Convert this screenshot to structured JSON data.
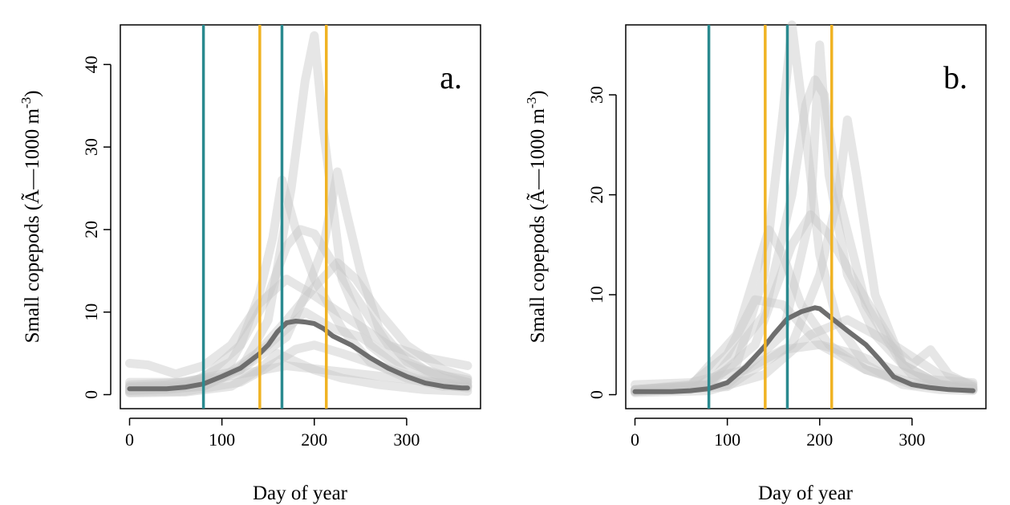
{
  "chart_data": [
    {
      "type": "line",
      "panel_label": "a.",
      "xlabel": "Day of year",
      "ylabel": "Small copepods (Ã—1000 m-3)",
      "ylabel_main": "Small copepods (Ã—1000 m",
      "ylabel_sup": "-3",
      "ylabel_close": ")",
      "xlim": [
        -10,
        380
      ],
      "ylim": [
        -1.7,
        44.8
      ],
      "x_ticks": [
        0,
        100,
        200,
        300
      ],
      "y_ticks": [
        0,
        10,
        20,
        30,
        40
      ],
      "grid": false,
      "legend": "none",
      "colors": {
        "mean": "#6e6e6e",
        "years": "#c8c8c8",
        "teal": "#2a8a8f",
        "gold": "#f0b323"
      },
      "vlines": [
        {
          "x": 80,
          "color": "#2a8a8f"
        },
        {
          "x": 141,
          "color": "#f0b323"
        },
        {
          "x": 165,
          "color": "#2a8a8f"
        },
        {
          "x": 213,
          "color": "#f0b323"
        }
      ],
      "series": [
        {
          "role": "mean",
          "x": [
            0,
            20,
            40,
            60,
            80,
            100,
            120,
            140,
            150,
            160,
            170,
            180,
            190,
            200,
            210,
            220,
            240,
            260,
            280,
            300,
            320,
            340,
            360,
            366
          ],
          "values": [
            0.7,
            0.7,
            0.7,
            0.9,
            1.3,
            2.2,
            3.2,
            4.9,
            6.0,
            7.6,
            8.7,
            8.9,
            8.8,
            8.6,
            8.0,
            7.1,
            6.0,
            4.5,
            3.2,
            2.2,
            1.4,
            1.0,
            0.8,
            0.8
          ]
        },
        {
          "role": "year",
          "x": [
            0,
            40,
            80,
            120,
            150,
            175,
            190,
            200,
            210,
            230,
            260,
            300,
            340,
            366
          ],
          "values": [
            0.5,
            0.6,
            1.0,
            3.0,
            9.0,
            25.0,
            38.0,
            43.5,
            32.0,
            14.0,
            6.0,
            2.5,
            1.2,
            1.0
          ]
        },
        {
          "role": "year",
          "x": [
            0,
            40,
            80,
            120,
            140,
            155,
            165,
            180,
            200,
            230,
            260,
            300,
            340,
            366
          ],
          "values": [
            1.0,
            1.2,
            2.0,
            6.0,
            12.0,
            19.0,
            26.0,
            20.0,
            14.0,
            8.0,
            4.0,
            2.0,
            1.0,
            1.0
          ]
        },
        {
          "role": "year",
          "x": [
            0,
            60,
            120,
            170,
            190,
            210,
            225,
            235,
            250,
            270,
            300,
            340,
            366
          ],
          "values": [
            1.5,
            1.5,
            3.0,
            7.0,
            12.0,
            18.0,
            27.0,
            22.0,
            15.0,
            8.0,
            4.0,
            2.0,
            1.5
          ]
        },
        {
          "role": "year",
          "x": [
            0,
            60,
            110,
            150,
            170,
            185,
            200,
            220,
            250,
            280,
            320,
            366
          ],
          "values": [
            0.8,
            1.0,
            4.0,
            12.0,
            18.0,
            20.0,
            19.5,
            16.0,
            11.0,
            6.0,
            3.0,
            1.5
          ]
        },
        {
          "role": "year",
          "x": [
            0,
            80,
            130,
            170,
            200,
            225,
            245,
            270,
            300,
            340,
            366
          ],
          "values": [
            0.5,
            1.0,
            4.0,
            9.0,
            13.0,
            16.0,
            14.0,
            10.0,
            6.0,
            3.0,
            2.0
          ]
        },
        {
          "role": "year",
          "x": [
            0,
            20,
            50,
            80,
            110,
            140,
            170,
            200,
            240,
            280,
            320,
            366
          ],
          "values": [
            3.8,
            3.6,
            2.5,
            3.5,
            6.0,
            11.0,
            14.0,
            12.0,
            9.0,
            6.0,
            4.5,
            3.5
          ]
        },
        {
          "role": "year",
          "x": [
            0,
            60,
            120,
            160,
            180,
            200,
            230,
            270,
            310,
            350,
            366
          ],
          "values": [
            0.3,
            0.4,
            1.5,
            4.0,
            5.5,
            6.0,
            5.0,
            3.5,
            2.0,
            1.0,
            0.8
          ]
        },
        {
          "role": "year",
          "x": [
            0,
            60,
            120,
            170,
            210,
            250,
            290,
            330,
            366
          ],
          "values": [
            1.2,
            1.5,
            2.5,
            3.5,
            3.0,
            2.5,
            2.0,
            1.5,
            1.2
          ]
        },
        {
          "role": "year",
          "x": [
            0,
            50,
            100,
            150,
            190,
            220,
            250,
            290,
            330,
            366
          ],
          "values": [
            0.9,
            1.1,
            2.0,
            6.0,
            10.0,
            8.0,
            7.0,
            4.0,
            2.5,
            1.8
          ]
        },
        {
          "role": "year",
          "x": [
            0,
            60,
            110,
            140,
            160,
            180,
            200,
            230,
            270,
            320,
            366
          ],
          "values": [
            0.2,
            0.3,
            1.0,
            3.0,
            5.0,
            4.0,
            3.0,
            2.0,
            1.2,
            0.6,
            0.4
          ]
        }
      ]
    },
    {
      "type": "line",
      "panel_label": "b.",
      "xlabel": "Day of year",
      "ylabel": "Small copepods (Ã—1000 m-3)",
      "ylabel_main": "Small copepods (Ã—1000 m",
      "ylabel_sup": "-3",
      "ylabel_close": ")",
      "xlim": [
        -10,
        380
      ],
      "ylim": [
        -1.4,
        37.0
      ],
      "x_ticks": [
        0,
        100,
        200,
        300
      ],
      "y_ticks": [
        0,
        10,
        20,
        30
      ],
      "grid": false,
      "legend": "none",
      "colors": {
        "mean": "#6e6e6e",
        "years": "#c8c8c8",
        "teal": "#2a8a8f",
        "gold": "#f0b323"
      },
      "vlines": [
        {
          "x": 80,
          "color": "#2a8a8f"
        },
        {
          "x": 141,
          "color": "#f0b323"
        },
        {
          "x": 165,
          "color": "#2a8a8f"
        },
        {
          "x": 213,
          "color": "#f0b323"
        }
      ],
      "series": [
        {
          "role": "mean",
          "x": [
            0,
            20,
            40,
            60,
            80,
            100,
            120,
            140,
            150,
            165,
            180,
            195,
            200,
            215,
            230,
            250,
            265,
            280,
            300,
            320,
            340,
            366
          ],
          "values": [
            0.3,
            0.3,
            0.3,
            0.4,
            0.6,
            1.2,
            2.8,
            4.8,
            6.0,
            7.6,
            8.3,
            8.7,
            8.6,
            7.5,
            6.4,
            5.0,
            3.5,
            1.8,
            1.0,
            0.7,
            0.5,
            0.4
          ]
        },
        {
          "role": "year",
          "x": [
            0,
            60,
            110,
            140,
            160,
            170,
            185,
            200,
            220,
            250,
            290,
            330,
            366
          ],
          "values": [
            0.3,
            0.5,
            3.0,
            12.0,
            28.0,
            37.0,
            26.0,
            14.0,
            7.0,
            3.0,
            1.0,
            0.5,
            0.4
          ]
        },
        {
          "role": "year",
          "x": [
            0,
            80,
            140,
            170,
            185,
            195,
            205,
            220,
            250,
            290,
            330,
            366
          ],
          "values": [
            0.5,
            1.0,
            8.0,
            20.0,
            29.0,
            31.5,
            30.0,
            20.0,
            9.0,
            3.0,
            1.0,
            0.6
          ]
        },
        {
          "role": "year",
          "x": [
            0,
            100,
            160,
            190,
            200,
            210,
            230,
            260,
            300,
            340,
            366
          ],
          "values": [
            0.4,
            1.0,
            6.0,
            18.0,
            35.0,
            22.0,
            12.0,
            6.0,
            2.0,
            0.8,
            0.5
          ]
        },
        {
          "role": "year",
          "x": [
            0,
            100,
            170,
            200,
            220,
            230,
            240,
            260,
            290,
            330,
            366
          ],
          "values": [
            0.3,
            0.8,
            5.0,
            12.0,
            20.0,
            27.5,
            22.0,
            10.0,
            3.0,
            1.0,
            0.5
          ]
        },
        {
          "role": "year",
          "x": [
            0,
            60,
            110,
            130,
            145,
            160,
            180,
            210,
            250,
            300,
            366
          ],
          "values": [
            0.4,
            0.8,
            6.0,
            12.0,
            16.5,
            14.0,
            9.0,
            5.0,
            2.5,
            1.0,
            0.6
          ]
        },
        {
          "role": "year",
          "x": [
            0,
            80,
            130,
            170,
            190,
            210,
            240,
            280,
            330,
            366
          ],
          "values": [
            0.5,
            1.0,
            5.0,
            15.0,
            18.0,
            16.0,
            11.0,
            5.0,
            2.0,
            1.0
          ]
        },
        {
          "role": "year",
          "x": [
            0,
            60,
            120,
            160,
            200,
            240,
            280,
            320,
            366
          ],
          "values": [
            1.0,
            1.2,
            2.5,
            4.5,
            5.0,
            4.0,
            2.5,
            1.5,
            1.2
          ]
        },
        {
          "role": "year",
          "x": [
            0,
            80,
            140,
            190,
            230,
            270,
            300,
            320,
            340,
            366
          ],
          "values": [
            0.2,
            0.4,
            2.0,
            6.0,
            7.5,
            5.5,
            3.0,
            4.5,
            2.0,
            0.8
          ]
        },
        {
          "role": "year",
          "x": [
            0,
            60,
            100,
            130,
            160,
            200,
            250,
            300,
            366
          ],
          "values": [
            0.5,
            1.0,
            4.0,
            9.5,
            9.0,
            5.0,
            2.5,
            1.2,
            0.8
          ]
        }
      ]
    }
  ]
}
